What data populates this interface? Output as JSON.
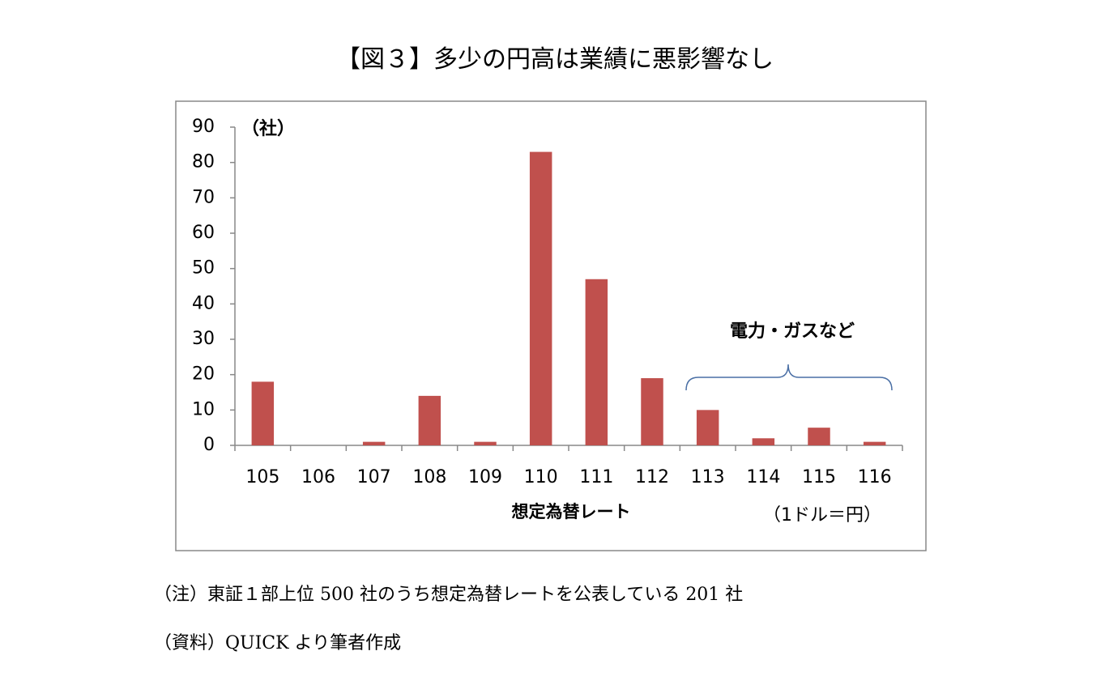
{
  "chart_data": {
    "type": "bar",
    "title": "【図３】多少の円高は業績に悪影響なし",
    "y_unit": "（社）",
    "x_label": "想定為替レート",
    "x_unit": "（1ドル＝円）",
    "annotation": "電力・ガスなど",
    "categories": [
      "105",
      "106",
      "107",
      "108",
      "109",
      "110",
      "111",
      "112",
      "113",
      "114",
      "115",
      "116"
    ],
    "values": [
      18,
      0,
      1,
      14,
      1,
      83,
      47,
      19,
      10,
      2,
      5,
      1
    ],
    "color": "#c0504d",
    "ylim": [
      0,
      90
    ],
    "yticks": [
      0,
      10,
      20,
      30,
      40,
      50,
      60,
      70,
      80,
      90
    ],
    "grid": false
  },
  "notes": [
    "（注）東証１部上位 500 社のうち想定為替レートを公表している 201 社",
    "（資料）QUICK より筆者作成"
  ]
}
